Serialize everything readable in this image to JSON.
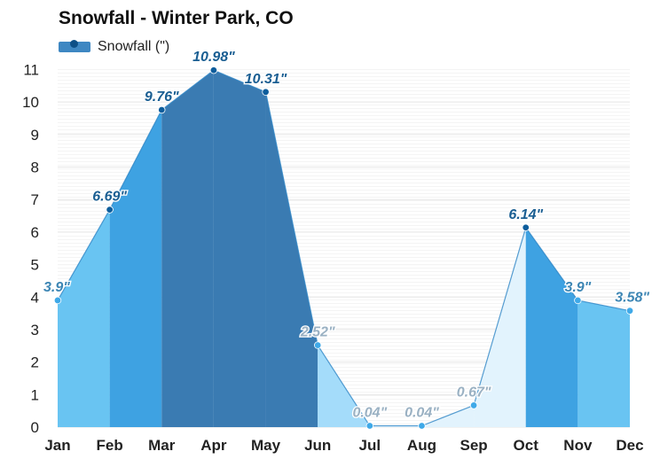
{
  "title": "Snowfall - Winter Park, CO",
  "legend": {
    "label": "Snowfall (\")"
  },
  "chart_data": {
    "type": "area",
    "title": "Snowfall - Winter Park, CO",
    "xlabel": "",
    "ylabel": "",
    "categories": [
      "Jan",
      "Feb",
      "Mar",
      "Apr",
      "May",
      "Jun",
      "Jul",
      "Aug",
      "Sep",
      "Oct",
      "Nov",
      "Dec"
    ],
    "series": [
      {
        "name": "Snowfall (\")",
        "values": [
          3.9,
          6.69,
          9.76,
          10.98,
          10.31,
          2.52,
          0.04,
          0.04,
          0.67,
          6.14,
          3.9,
          3.58
        ]
      }
    ],
    "data_labels": [
      "3.9\"",
      "6.69\"",
      "9.76\"",
      "10.98\"",
      "10.31\"",
      "2.52\"",
      "0.04\"",
      "0.04\"",
      "0.67\"",
      "6.14\"",
      "3.9\"",
      "3.58\""
    ],
    "ylim": [
      0,
      11
    ],
    "yticks": [
      "0",
      "1",
      "2",
      "3",
      "4",
      "5",
      "6",
      "7",
      "8",
      "9",
      "10",
      "11"
    ],
    "grid": true,
    "legend_position": "top-left",
    "colors": {
      "deep": "#3a7bb2",
      "mid": "#3ea2e2",
      "light": "#69c4f2",
      "pale": "#a4dcfa",
      "faint": "#e2f3fd",
      "dot_dark": "#0d5d9c",
      "dot_light": "#3fa9e8",
      "label_dark": "#1a5e92",
      "label_mid": "#3d86b4",
      "label_pale": "#9ab1c3",
      "grid": "#e6e6e6",
      "axis_text": "#222222"
    }
  }
}
